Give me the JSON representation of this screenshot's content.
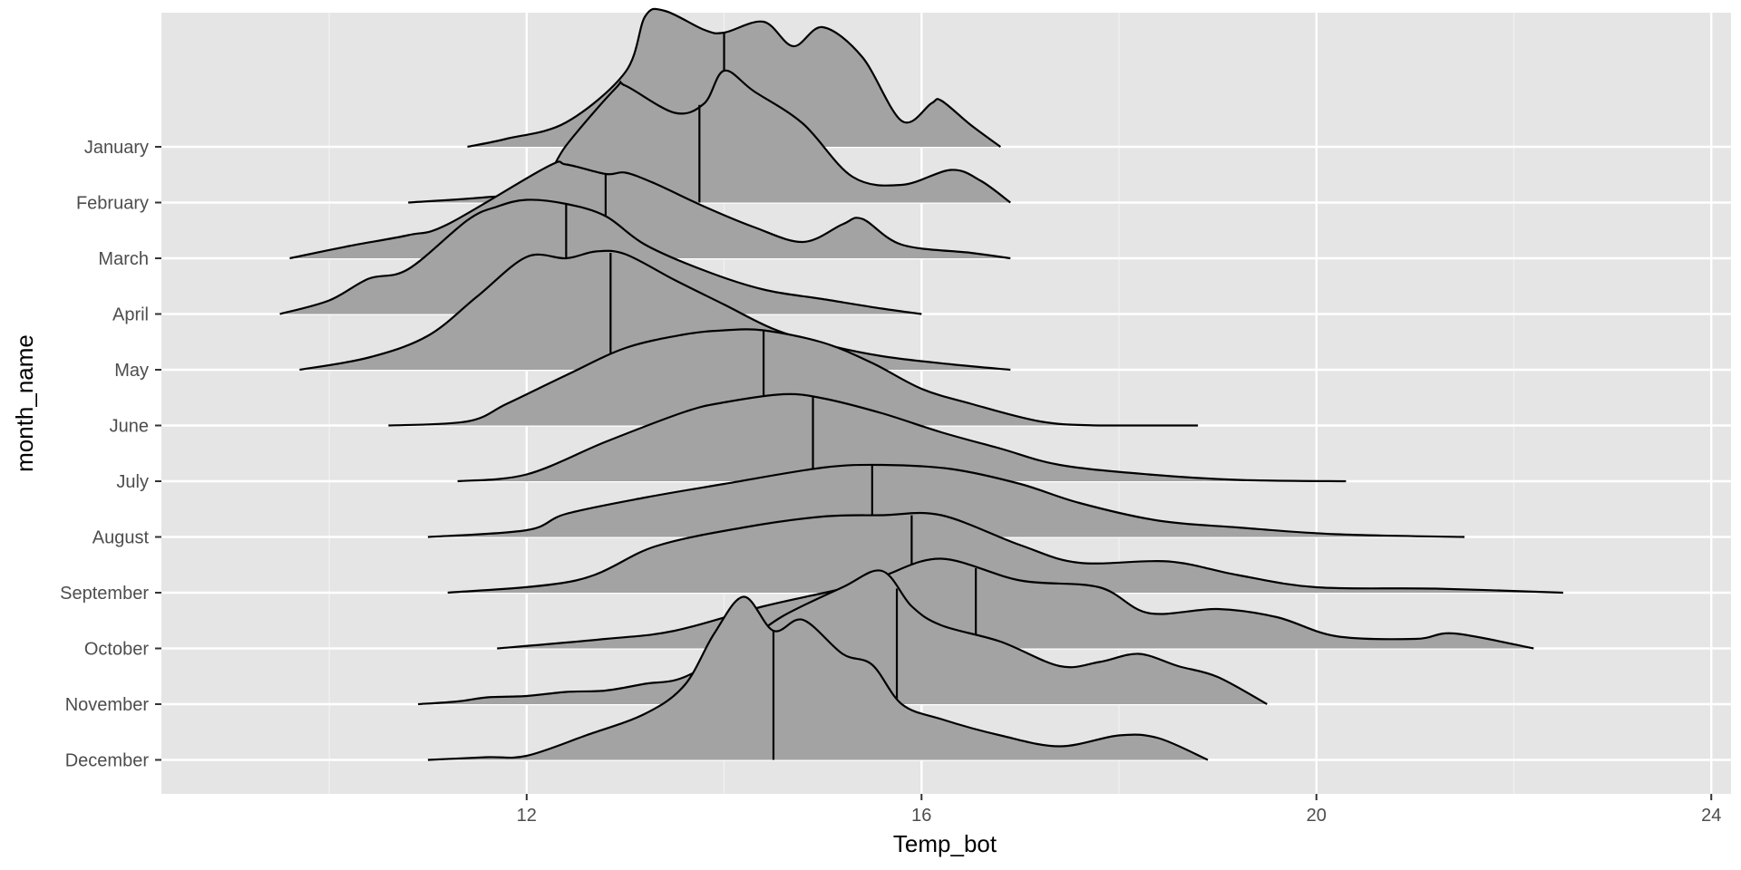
{
  "chart_data": {
    "type": "ridgeline",
    "xlabel": "Temp_bot",
    "ylabel": "month_name",
    "xlim": [
      8.3,
      24.2
    ],
    "x_ticks": [
      "12",
      "16",
      "20",
      "24"
    ],
    "x_tick_values": [
      12,
      16,
      20,
      24
    ],
    "x_minor_grid": [
      10,
      14,
      18,
      22
    ],
    "grid": true,
    "fill_color": "#a3a3a3",
    "panel_color": "#e5e5e5",
    "series": [
      {
        "name": "January",
        "median": 14.0,
        "density": [
          [
            11.4,
            0.0
          ],
          [
            11.8,
            0.06
          ],
          [
            12.4,
            0.18
          ],
          [
            13.0,
            0.55
          ],
          [
            13.2,
            0.96
          ],
          [
            13.4,
            1.0
          ],
          [
            13.8,
            0.86
          ],
          [
            14.0,
            0.84
          ],
          [
            14.4,
            0.92
          ],
          [
            14.7,
            0.74
          ],
          [
            15.0,
            0.88
          ],
          [
            15.4,
            0.66
          ],
          [
            15.8,
            0.19
          ],
          [
            16.1,
            0.32
          ],
          [
            16.2,
            0.34
          ],
          [
            16.5,
            0.16
          ],
          [
            16.8,
            0.0
          ]
        ]
      },
      {
        "name": "February",
        "median": 13.75,
        "density": [
          [
            10.8,
            0.0
          ],
          [
            11.6,
            0.04
          ],
          [
            12.1,
            0.09
          ],
          [
            12.4,
            0.42
          ],
          [
            12.9,
            0.84
          ],
          [
            13.0,
            0.86
          ],
          [
            13.5,
            0.66
          ],
          [
            13.8,
            0.73
          ],
          [
            14.0,
            0.97
          ],
          [
            14.3,
            0.82
          ],
          [
            14.8,
            0.58
          ],
          [
            15.3,
            0.19
          ],
          [
            15.8,
            0.13
          ],
          [
            16.3,
            0.24
          ],
          [
            16.6,
            0.16
          ],
          [
            16.9,
            0.0
          ]
        ]
      },
      {
        "name": "March",
        "median": 12.8,
        "density": [
          [
            9.6,
            0.0
          ],
          [
            10.2,
            0.09
          ],
          [
            10.8,
            0.17
          ],
          [
            11.2,
            0.25
          ],
          [
            12.2,
            0.67
          ],
          [
            12.4,
            0.69
          ],
          [
            12.8,
            0.62
          ],
          [
            13.0,
            0.63
          ],
          [
            13.3,
            0.55
          ],
          [
            13.8,
            0.38
          ],
          [
            14.3,
            0.23
          ],
          [
            14.8,
            0.12
          ],
          [
            15.2,
            0.25
          ],
          [
            15.4,
            0.29
          ],
          [
            15.8,
            0.1
          ],
          [
            16.5,
            0.04
          ],
          [
            16.9,
            0.0
          ]
        ]
      },
      {
        "name": "April",
        "median": 12.4,
        "density": [
          [
            9.5,
            0.0
          ],
          [
            10.0,
            0.1
          ],
          [
            10.4,
            0.26
          ],
          [
            10.8,
            0.33
          ],
          [
            11.4,
            0.69
          ],
          [
            11.7,
            0.79
          ],
          [
            12.0,
            0.84
          ],
          [
            12.4,
            0.81
          ],
          [
            12.8,
            0.72
          ],
          [
            13.2,
            0.51
          ],
          [
            13.8,
            0.32
          ],
          [
            14.4,
            0.18
          ],
          [
            15.0,
            0.11
          ],
          [
            15.6,
            0.04
          ],
          [
            16.0,
            0.0
          ]
        ]
      },
      {
        "name": "May",
        "median": 12.85,
        "density": [
          [
            9.7,
            0.0
          ],
          [
            10.4,
            0.09
          ],
          [
            11.0,
            0.25
          ],
          [
            11.5,
            0.54
          ],
          [
            12.0,
            0.83
          ],
          [
            12.4,
            0.82
          ],
          [
            12.7,
            0.87
          ],
          [
            13.0,
            0.85
          ],
          [
            13.5,
            0.66
          ],
          [
            14.0,
            0.48
          ],
          [
            14.5,
            0.3
          ],
          [
            15.0,
            0.19
          ],
          [
            15.6,
            0.1
          ],
          [
            16.3,
            0.04
          ],
          [
            16.9,
            0.0
          ]
        ]
      },
      {
        "name": "June",
        "median": 14.4,
        "density": [
          [
            10.6,
            0.0
          ],
          [
            11.4,
            0.03
          ],
          [
            11.8,
            0.16
          ],
          [
            12.4,
            0.37
          ],
          [
            13.0,
            0.57
          ],
          [
            13.6,
            0.67
          ],
          [
            14.0,
            0.7
          ],
          [
            14.4,
            0.7
          ],
          [
            15.0,
            0.61
          ],
          [
            15.5,
            0.46
          ],
          [
            16.0,
            0.27
          ],
          [
            16.5,
            0.16
          ],
          [
            17.2,
            0.03
          ],
          [
            17.8,
            0.0
          ],
          [
            18.8,
            0.0
          ]
        ]
      },
      {
        "name": "July",
        "median": 14.9,
        "density": [
          [
            11.3,
            0.0
          ],
          [
            12.0,
            0.05
          ],
          [
            12.8,
            0.29
          ],
          [
            13.6,
            0.51
          ],
          [
            14.0,
            0.58
          ],
          [
            14.6,
            0.64
          ],
          [
            15.0,
            0.61
          ],
          [
            15.6,
            0.5
          ],
          [
            16.2,
            0.36
          ],
          [
            16.8,
            0.24
          ],
          [
            17.4,
            0.12
          ],
          [
            18.3,
            0.05
          ],
          [
            19.2,
            0.01
          ],
          [
            20.3,
            0.0
          ]
        ]
      },
      {
        "name": "August",
        "median": 15.5,
        "density": [
          [
            11.0,
            0.0
          ],
          [
            12.0,
            0.05
          ],
          [
            12.4,
            0.17
          ],
          [
            13.2,
            0.29
          ],
          [
            14.0,
            0.39
          ],
          [
            15.0,
            0.51
          ],
          [
            15.6,
            0.53
          ],
          [
            16.3,
            0.5
          ],
          [
            17.0,
            0.39
          ],
          [
            17.6,
            0.25
          ],
          [
            18.4,
            0.12
          ],
          [
            19.2,
            0.07
          ],
          [
            20.2,
            0.02
          ],
          [
            21.5,
            0.0
          ]
        ]
      },
      {
        "name": "September",
        "median": 15.9,
        "density": [
          [
            11.2,
            0.0
          ],
          [
            12.5,
            0.09
          ],
          [
            13.3,
            0.34
          ],
          [
            14.2,
            0.48
          ],
          [
            15.0,
            0.56
          ],
          [
            15.6,
            0.57
          ],
          [
            16.2,
            0.57
          ],
          [
            17.0,
            0.35
          ],
          [
            17.6,
            0.22
          ],
          [
            18.5,
            0.23
          ],
          [
            19.2,
            0.13
          ],
          [
            20.0,
            0.04
          ],
          [
            21.2,
            0.03
          ],
          [
            22.5,
            0.0
          ]
        ]
      },
      {
        "name": "October",
        "median": 16.55,
        "density": [
          [
            11.7,
            0.0
          ],
          [
            12.8,
            0.07
          ],
          [
            13.5,
            0.13
          ],
          [
            14.4,
            0.31
          ],
          [
            15.2,
            0.44
          ],
          [
            15.6,
            0.53
          ],
          [
            16.2,
            0.66
          ],
          [
            17.0,
            0.5
          ],
          [
            17.8,
            0.45
          ],
          [
            18.3,
            0.26
          ],
          [
            19.0,
            0.29
          ],
          [
            19.6,
            0.23
          ],
          [
            20.2,
            0.09
          ],
          [
            21.0,
            0.07
          ],
          [
            21.4,
            0.11
          ],
          [
            22.2,
            0.0
          ]
        ]
      },
      {
        "name": "November",
        "median": 15.75,
        "density": [
          [
            10.9,
            0.0
          ],
          [
            11.3,
            0.02
          ],
          [
            11.6,
            0.05
          ],
          [
            12.0,
            0.06
          ],
          [
            12.4,
            0.09
          ],
          [
            12.8,
            0.1
          ],
          [
            13.2,
            0.15
          ],
          [
            13.6,
            0.2
          ],
          [
            14.2,
            0.45
          ],
          [
            14.6,
            0.65
          ],
          [
            15.2,
            0.86
          ],
          [
            15.6,
            0.98
          ],
          [
            15.9,
            0.72
          ],
          [
            16.2,
            0.58
          ],
          [
            16.8,
            0.46
          ],
          [
            17.4,
            0.28
          ],
          [
            17.8,
            0.31
          ],
          [
            18.2,
            0.37
          ],
          [
            18.6,
            0.28
          ],
          [
            19.0,
            0.2
          ],
          [
            19.5,
            0.0
          ]
        ]
      },
      {
        "name": "December",
        "median": 14.5,
        "density": [
          [
            11.0,
            0.0
          ],
          [
            11.6,
            0.02
          ],
          [
            12.0,
            0.03
          ],
          [
            12.6,
            0.18
          ],
          [
            13.2,
            0.34
          ],
          [
            13.6,
            0.55
          ],
          [
            13.9,
            0.93
          ],
          [
            14.2,
            1.2
          ],
          [
            14.5,
            0.95
          ],
          [
            14.8,
            1.03
          ],
          [
            15.2,
            0.78
          ],
          [
            15.5,
            0.7
          ],
          [
            15.8,
            0.41
          ],
          [
            16.2,
            0.3
          ],
          [
            16.8,
            0.18
          ],
          [
            17.4,
            0.1
          ],
          [
            18.0,
            0.18
          ],
          [
            18.4,
            0.16
          ],
          [
            18.9,
            0.0
          ]
        ]
      }
    ]
  }
}
